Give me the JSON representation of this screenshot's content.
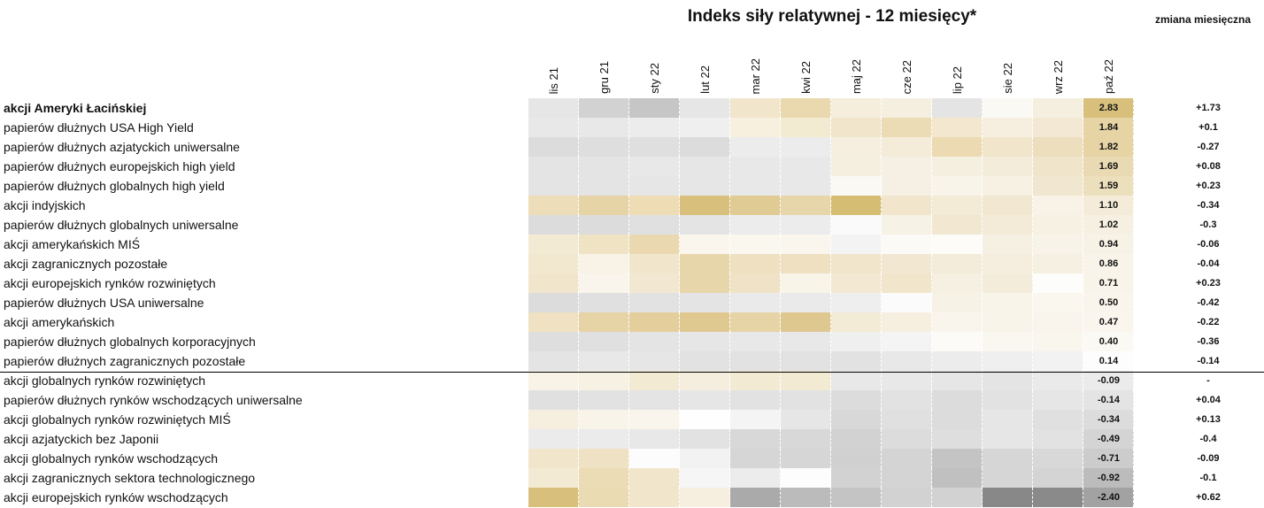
{
  "title": "Indeks siły relatywnej - 12 miesięcy*",
  "change_header": "zmiana miesięczna",
  "months": [
    "lis 21",
    "gru 21",
    "sty 22",
    "lut 22",
    "mar 22",
    "kwi 22",
    "maj 22",
    "cze 22",
    "lip 22",
    "sie 22",
    "wrz 22",
    "paź 22"
  ],
  "rows": [
    {
      "label": "akcji Ameryki Łacińskiej",
      "value": "2.83",
      "change": "+1.73",
      "colors": [
        "#e6e6e6",
        "#d2d2d2",
        "#c6c6c6",
        "#e6e6e6",
        "#f1e6cc",
        "#ead9ae",
        "#f5eedc",
        "#f5efe0",
        "#e4e4e4",
        "#fbf9f4",
        "#f5efe0",
        "#d8c07c"
      ]
    },
    {
      "label": "papierów dłużnych USA High Yield",
      "value": "1.84",
      "change": "+0.1",
      "colors": [
        "#e8e8e8",
        "#e8e8e8",
        "#ececec",
        "#efefef",
        "#f7f0de",
        "#f3ead2",
        "#f1e6cc",
        "#ecdcb5",
        "#f3e8cf",
        "#f6efe0",
        "#f2e8d4",
        "#e6d4a5"
      ]
    },
    {
      "label": "papierów dłużnych azjatyckich uniwersalne",
      "value": "1.82",
      "change": "-0.27",
      "colors": [
        "#dcdcdc",
        "#dedede",
        "#dfdfdf",
        "#dcdcdc",
        "#ececec",
        "#ececec",
        "#f6efe0",
        "#f4ecd8",
        "#ecdab3",
        "#f1e6cc",
        "#eddfbe",
        "#e6d4a5"
      ]
    },
    {
      "label": "papierów dłużnych europejskich high yield",
      "value": "1.69",
      "change": "+0.08",
      "colors": [
        "#e4e4e4",
        "#e4e4e4",
        "#e8e8e8",
        "#e6e6e6",
        "#e8e8e8",
        "#e8e8e8",
        "#f5efe0",
        "#f6f0e4",
        "#f5efe0",
        "#f4ecda",
        "#f0e5cb",
        "#e9dab3"
      ]
    },
    {
      "label": "papierów dłużnych globalnych high yield",
      "value": "1.59",
      "change": "+0.23",
      "colors": [
        "#e4e4e4",
        "#e4e4e4",
        "#e6e6e6",
        "#e6e6e6",
        "#e8e8e8",
        "#e8e8e8",
        "#fbf9f3",
        "#f6f0e4",
        "#f8f4ea",
        "#f7f1e3",
        "#f1e7d0",
        "#ecdfbc"
      ]
    },
    {
      "label": "akcji indyjskich",
      "value": "1.10",
      "change": "-0.34",
      "colors": [
        "#edddb8",
        "#e6d4a6",
        "#eddcb4",
        "#d8c07c",
        "#e1cb94",
        "#e8d6ab",
        "#d6bd74",
        "#f1e6cc",
        "#f4ebd6",
        "#f2e8d2",
        "#f8f3e6",
        "#f4ecd8"
      ]
    },
    {
      "label": "papierów dłużnych globalnych uniwersalne",
      "value": "1.02",
      "change": "-0.3",
      "colors": [
        "#dcdcdc",
        "#dcdcdc",
        "#e0e0e0",
        "#e4e4e4",
        "#ececec",
        "#ececec",
        "#fafafa",
        "#f7f2e6",
        "#f2e8d2",
        "#f3ebd8",
        "#f7f1e4",
        "#f6f0e2"
      ]
    },
    {
      "label": "akcji amerykańskich MIŚ",
      "value": "0.94",
      "change": "-0.06",
      "colors": [
        "#f3ead4",
        "#efe3c4",
        "#ead9b0",
        "#faf6ee",
        "#faf7ef",
        "#faf6ee",
        "#f3f3f3",
        "#fcfaf6",
        "#fdfcf8",
        "#f6f0e2",
        "#f8f3e8",
        "#f7f2e6"
      ]
    },
    {
      "label": "akcji zagranicznych pozostałe",
      "value": "0.86",
      "change": "-0.04",
      "colors": [
        "#f2e8d0",
        "#f8f3e6",
        "#f1e6cc",
        "#e8d6ab",
        "#eee0c1",
        "#eee0c1",
        "#f1e6cc",
        "#f2e8d2",
        "#f4ecda",
        "#f5eedf",
        "#f6f0e2",
        "#f8f4ea"
      ]
    },
    {
      "label": "akcji europejskich rynków rozwiniętych",
      "value": "0.71",
      "change": "+0.23",
      "colors": [
        "#f1e6cc",
        "#f9f5ec",
        "#f2e8d2",
        "#e8d6ab",
        "#efe2c6",
        "#f9f4e8",
        "#f3e9d2",
        "#f1e6cc",
        "#f6f0e2",
        "#f4ecda",
        "#fdfdfb",
        "#f8f4ea"
      ]
    },
    {
      "label": "papierów dłużnych USA uniwersalne",
      "value": "0.50",
      "change": "-0.42",
      "colors": [
        "#dcdcdc",
        "#e0e0e0",
        "#e2e2e2",
        "#e4e4e4",
        "#eaeaea",
        "#eaeaea",
        "#eeeeee",
        "#fbfbfb",
        "#f7f2e6",
        "#f8f4ea",
        "#faf7ef",
        "#f9f5ec"
      ]
    },
    {
      "label": "akcji amerykańskich",
      "value": "0.47",
      "change": "-0.22",
      "colors": [
        "#efe1c2",
        "#e6d4a6",
        "#e4cf9c",
        "#e0c991",
        "#e6d4a6",
        "#dfc890",
        "#f4ebd6",
        "#f6efe0",
        "#f9f5ec",
        "#f8f4ea",
        "#f9f5ec",
        "#faf6ee"
      ]
    },
    {
      "label": "papierów dłużnych globalnych korporacyjnych",
      "value": "0.40",
      "change": "-0.36",
      "colors": [
        "#dedede",
        "#e0e0e0",
        "#e4e4e4",
        "#e6e6e6",
        "#e8e8e8",
        "#e8e8e8",
        "#efefef",
        "#f4f4f4",
        "#fcfbf8",
        "#faf7f0",
        "#f9f6ee",
        "#fbf9f3"
      ]
    },
    {
      "label": "papierów dłużnych zagranicznych pozostałe",
      "value": "0.14",
      "change": "-0.14",
      "colors": [
        "#e4e4e4",
        "#e8e8e8",
        "#e6e6e6",
        "#e2e2e2",
        "#e2e2e2",
        "#e2e2e2",
        "#e2e2e2",
        "#e8e8e8",
        "#ececec",
        "#efefef",
        "#f2f2f2",
        "#fdfdfd"
      ]
    },
    {
      "label": "akcji globalnych rynków rozwiniętych",
      "value": "-0.09",
      "change": "-",
      "colors": [
        "#f8f3e6",
        "#f7f1e3",
        "#f3ead4",
        "#f5eedf",
        "#f3ead4",
        "#f3ead4",
        "#e8e8e8",
        "#e8e8e8",
        "#e6e6e6",
        "#e4e4e4",
        "#eaeaea",
        "#ebebeb"
      ]
    },
    {
      "label": "papierów dłużnych rynków wschodzących uniwersalne",
      "value": "-0.14",
      "change": "+0.04",
      "colors": [
        "#e0e0e0",
        "#e2e2e2",
        "#e4e4e4",
        "#e6e6e6",
        "#e2e2e2",
        "#e2e2e2",
        "#dcdcdc",
        "#e2e2e2",
        "#dcdcdc",
        "#e2e2e2",
        "#e6e6e6",
        "#e4e4e4"
      ]
    },
    {
      "label": "akcji globalnych rynków rozwiniętych MIŚ",
      "value": "-0.34",
      "change": "+0.13",
      "colors": [
        "#f6efdf",
        "#f8f4ea",
        "#f9f5ec",
        "#fefefe",
        "#f4f4f4",
        "#e6e6e6",
        "#d8d8d8",
        "#e0e0e0",
        "#dcdcdc",
        "#e6e6e6",
        "#e0e0e0",
        "#dcdcdc"
      ]
    },
    {
      "label": "akcji azjatyckich bez Japonii",
      "value": "-0.49",
      "change": "-0.4",
      "colors": [
        "#ebebeb",
        "#ebebeb",
        "#e8e8e8",
        "#e2e2e2",
        "#d8d8d8",
        "#d8d8d8",
        "#d2d2d2",
        "#dcdcdc",
        "#dedede",
        "#e6e6e6",
        "#e2e2e2",
        "#d4d4d4"
      ]
    },
    {
      "label": "akcji globalnych rynków wschodzących",
      "value": "-0.71",
      "change": "-0.09",
      "colors": [
        "#f1e6cc",
        "#efe2c4",
        "#fcfcfc",
        "#f2f2f2",
        "#d6d6d6",
        "#d6d6d6",
        "#d0d0d0",
        "#d4d4d4",
        "#c4c4c4",
        "#d6d6d6",
        "#d8d8d8",
        "#cccccc"
      ]
    },
    {
      "label": "akcji zagranicznych sektora technologicznego",
      "value": "-0.92",
      "change": "-0.1",
      "colors": [
        "#f3ead4",
        "#ecdcb5",
        "#f1e6cc",
        "#f6f6f6",
        "#ececec",
        "#fdfdfd",
        "#d2d2d2",
        "#d4d4d4",
        "#c0c0c0",
        "#d6d6d6",
        "#d4d4d4",
        "#bcbcbc"
      ]
    },
    {
      "label": "akcji europejskich rynków wschodzących",
      "value": "-2.40",
      "change": "+0.62",
      "colors": [
        "#d8c07c",
        "#ebdbb3",
        "#f1e6cc",
        "#f6efe0",
        "#aaaaaa",
        "#bbbbbb",
        "#c4c4c4",
        "#d2d2d2",
        "#d2d2d2",
        "#888888",
        "#8a8a8a",
        "#a2a2a2"
      ]
    }
  ]
}
